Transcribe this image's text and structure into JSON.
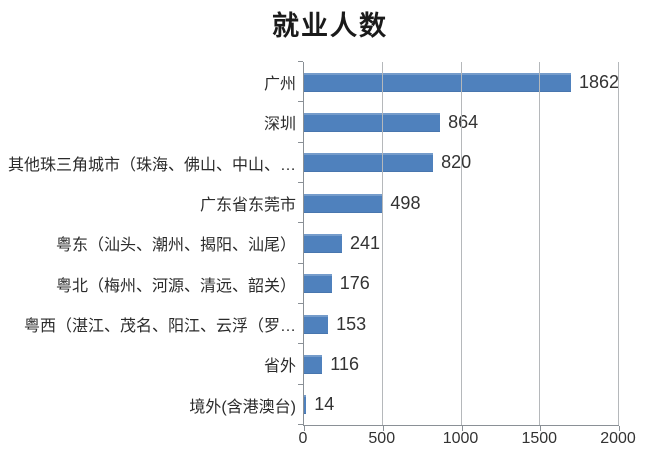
{
  "chart_data": {
    "type": "bar",
    "orientation": "horizontal",
    "title": "就业人数",
    "categories": [
      "广州",
      "深圳",
      "其他珠三角城市（珠海、佛山、中山、…",
      "广东省东莞市",
      "粤东（汕头、潮州、揭阳、汕尾）",
      "粤北（梅州、河源、清远、韶关）",
      "粤西（湛江、茂名、阳江、云浮（罗…",
      "省外",
      "境外(含港澳台)"
    ],
    "values": [
      1862,
      864,
      820,
      498,
      241,
      176,
      153,
      116,
      14
    ],
    "data_labels": [
      1862,
      864,
      820,
      498,
      241,
      176,
      153,
      116,
      14
    ],
    "xlabel": "",
    "ylabel": "",
    "xlim": [
      0,
      2000
    ],
    "x_ticks": [
      "0",
      "500",
      "1000",
      "1500",
      "2000"
    ],
    "grid": "vertical gridlines at x ticks",
    "legend": "none"
  },
  "colors": {
    "bar": "#4f81bd",
    "gridline": "#b5b8bb",
    "axis": "#8a9096",
    "title_text": "#1a1a1a",
    "label_text": "#2b2b2b",
    "value_text": "#333333",
    "background": "#ffffff"
  }
}
